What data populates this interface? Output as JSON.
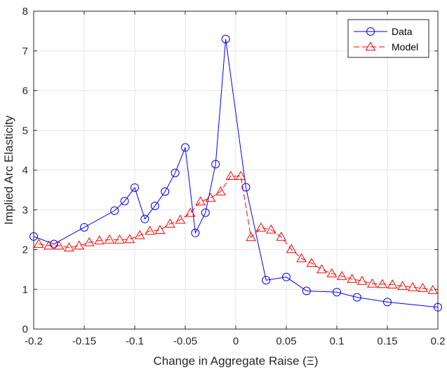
{
  "chart_data": {
    "type": "line",
    "title": "",
    "xlabel": "Change in Aggregate Raise (Ξ)",
    "ylabel": "Implied Arc Elasticity",
    "xlim": [
      -0.2,
      0.2
    ],
    "ylim": [
      0,
      8
    ],
    "x_ticks": [
      -0.2,
      -0.15,
      -0.1,
      -0.05,
      0,
      0.05,
      0.1,
      0.15,
      0.2
    ],
    "x_tick_labels": [
      "-0.2",
      "-0.15",
      "-0.1",
      "-0.05",
      "0",
      "0.05",
      "0.1",
      "0.15",
      "0.2"
    ],
    "y_ticks": [
      0,
      1,
      2,
      3,
      4,
      5,
      6,
      7,
      8
    ],
    "y_tick_labels": [
      "0",
      "1",
      "2",
      "3",
      "4",
      "5",
      "6",
      "7",
      "8"
    ],
    "grid": true,
    "legend_position": "top-right",
    "series": [
      {
        "name": "Data",
        "color": "#0000ff",
        "line_style": "solid",
        "marker": "circle",
        "x": [
          -0.2,
          -0.18,
          -0.15,
          -0.12,
          -0.11,
          -0.1,
          -0.09,
          -0.08,
          -0.07,
          -0.06,
          -0.05,
          -0.04,
          -0.03,
          -0.02,
          -0.01,
          0.01,
          0.03,
          0.05,
          0.07,
          0.1,
          0.12,
          0.15,
          0.2
        ],
        "y": [
          2.33,
          2.14,
          2.56,
          2.98,
          3.22,
          3.56,
          2.77,
          3.1,
          3.46,
          3.93,
          4.57,
          2.42,
          2.93,
          4.15,
          7.3,
          3.57,
          1.23,
          1.31,
          0.96,
          0.93,
          0.8,
          0.68,
          0.55
        ]
      },
      {
        "name": "Model",
        "color": "#ff0000",
        "line_style": "dashed",
        "marker": "triangle",
        "x": [
          -0.195,
          -0.185,
          -0.175,
          -0.165,
          -0.155,
          -0.145,
          -0.135,
          -0.125,
          -0.115,
          -0.105,
          -0.095,
          -0.085,
          -0.075,
          -0.065,
          -0.055,
          -0.045,
          -0.035,
          -0.025,
          -0.015,
          -0.005,
          0.005,
          0.015,
          0.025,
          0.035,
          0.045,
          0.055,
          0.065,
          0.075,
          0.085,
          0.095,
          0.105,
          0.115,
          0.125,
          0.135,
          0.145,
          0.155,
          0.165,
          0.175,
          0.185,
          0.195
        ],
        "y": [
          2.14,
          2.1,
          2.1,
          2.05,
          2.1,
          2.18,
          2.23,
          2.25,
          2.25,
          2.26,
          2.36,
          2.47,
          2.49,
          2.65,
          2.75,
          2.92,
          3.21,
          3.3,
          3.46,
          3.85,
          3.85,
          2.31,
          2.55,
          2.5,
          2.32,
          2.01,
          1.78,
          1.66,
          1.5,
          1.4,
          1.33,
          1.26,
          1.21,
          1.14,
          1.13,
          1.12,
          1.08,
          1.05,
          1.03,
          0.98
        ]
      }
    ]
  }
}
